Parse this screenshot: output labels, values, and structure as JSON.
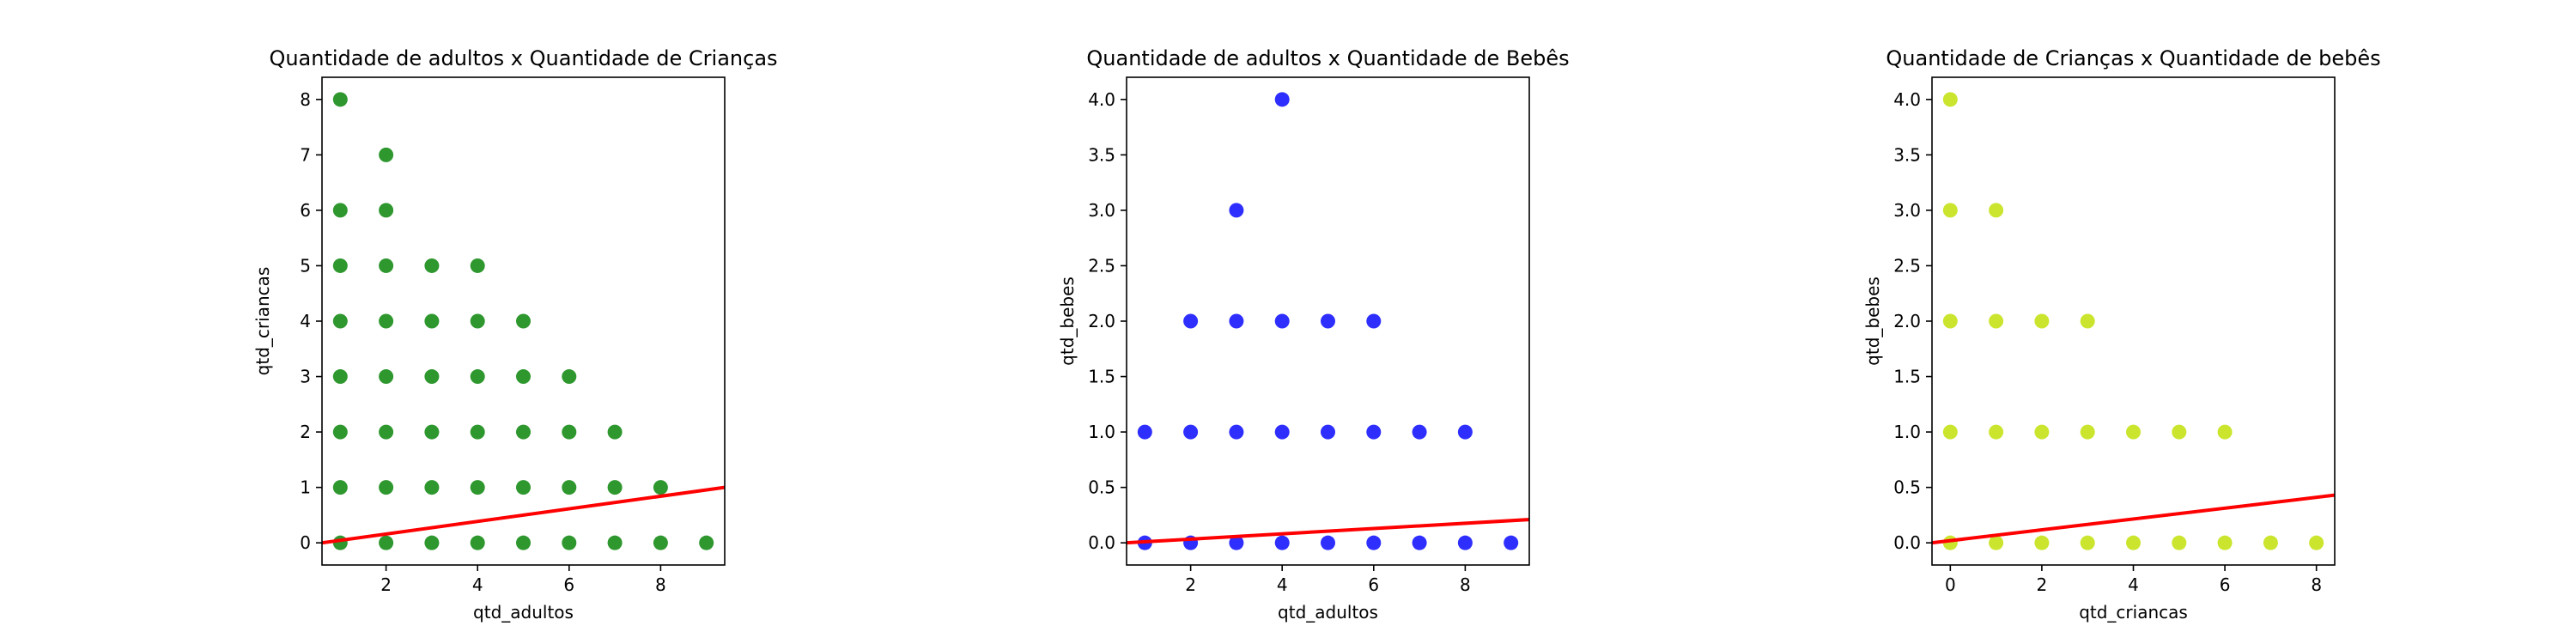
{
  "chart_data": [
    {
      "type": "scatter",
      "title": "Quantidade de adultos x Quantidade de Crianças",
      "xlabel": "qtd_adultos",
      "ylabel": "qtd_criancas",
      "xlim": [
        0.6,
        9.4
      ],
      "ylim": [
        -0.4,
        8.4
      ],
      "xticks": [
        2,
        4,
        6,
        8
      ],
      "yticks": [
        0,
        1,
        2,
        3,
        4,
        5,
        6,
        7,
        8
      ],
      "ytick_labels": [
        "0",
        "1",
        "2",
        "3",
        "4",
        "5",
        "6",
        "7",
        "8"
      ],
      "grid": false,
      "color": "#008000",
      "points": [
        [
          1,
          0
        ],
        [
          1,
          1
        ],
        [
          1,
          2
        ],
        [
          1,
          3
        ],
        [
          1,
          4
        ],
        [
          1,
          5
        ],
        [
          1,
          6
        ],
        [
          1,
          8
        ],
        [
          2,
          0
        ],
        [
          2,
          1
        ],
        [
          2,
          2
        ],
        [
          2,
          3
        ],
        [
          2,
          4
        ],
        [
          2,
          5
        ],
        [
          2,
          6
        ],
        [
          2,
          7
        ],
        [
          3,
          0
        ],
        [
          3,
          1
        ],
        [
          3,
          2
        ],
        [
          3,
          3
        ],
        [
          3,
          4
        ],
        [
          3,
          5
        ],
        [
          4,
          0
        ],
        [
          4,
          1
        ],
        [
          4,
          2
        ],
        [
          4,
          3
        ],
        [
          4,
          4
        ],
        [
          4,
          5
        ],
        [
          5,
          0
        ],
        [
          5,
          1
        ],
        [
          5,
          2
        ],
        [
          5,
          3
        ],
        [
          5,
          4
        ],
        [
          6,
          0
        ],
        [
          6,
          1
        ],
        [
          6,
          2
        ],
        [
          6,
          3
        ],
        [
          7,
          0
        ],
        [
          7,
          1
        ],
        [
          7,
          2
        ],
        [
          8,
          0
        ],
        [
          8,
          1
        ],
        [
          9,
          0
        ]
      ],
      "line": {
        "color": "#ff0000",
        "x": [
          0.6,
          9.4
        ],
        "y": [
          0.0,
          1.0
        ]
      }
    },
    {
      "type": "scatter",
      "title": "Quantidade de adultos x Quantidade de Bebês",
      "xlabel": "qtd_adultos",
      "ylabel": "qtd_bebes",
      "xlim": [
        0.6,
        9.4
      ],
      "ylim": [
        -0.2,
        4.2
      ],
      "xticks": [
        2,
        4,
        6,
        8
      ],
      "yticks": [
        0,
        0.5,
        1,
        1.5,
        2,
        2.5,
        3,
        3.5,
        4
      ],
      "ytick_labels": [
        "0.0",
        "0.5",
        "1.0",
        "1.5",
        "2.0",
        "2.5",
        "3.0",
        "3.5",
        "4.0"
      ],
      "grid": false,
      "color": "#0000ff",
      "points": [
        [
          1,
          0
        ],
        [
          1,
          1
        ],
        [
          2,
          0
        ],
        [
          2,
          1
        ],
        [
          2,
          2
        ],
        [
          3,
          0
        ],
        [
          3,
          1
        ],
        [
          3,
          2
        ],
        [
          3,
          3
        ],
        [
          4,
          0
        ],
        [
          4,
          1
        ],
        [
          4,
          2
        ],
        [
          4,
          4
        ],
        [
          5,
          0
        ],
        [
          5,
          1
        ],
        [
          5,
          2
        ],
        [
          6,
          0
        ],
        [
          6,
          1
        ],
        [
          6,
          2
        ],
        [
          7,
          0
        ],
        [
          7,
          1
        ],
        [
          8,
          0
        ],
        [
          8,
          1
        ],
        [
          9,
          0
        ]
      ],
      "line": {
        "color": "#ff0000",
        "x": [
          0.6,
          9.4
        ],
        "y": [
          0.0,
          0.21
        ]
      }
    },
    {
      "type": "scatter",
      "title": "Quantidade de Crianças x Quantidade de bebês",
      "xlabel": "qtd_criancas",
      "ylabel": "qtd_bebes",
      "xlim": [
        -0.4,
        8.4
      ],
      "ylim": [
        -0.2,
        4.2
      ],
      "xticks": [
        0,
        2,
        4,
        6,
        8
      ],
      "yticks": [
        0,
        0.5,
        1,
        1.5,
        2,
        2.5,
        3,
        3.5,
        4
      ],
      "ytick_labels": [
        "0.0",
        "0.5",
        "1.0",
        "1.5",
        "2.0",
        "2.5",
        "3.0",
        "3.5",
        "4.0"
      ],
      "grid": false,
      "color": "#bfdf00",
      "points": [
        [
          0,
          0
        ],
        [
          0,
          1
        ],
        [
          0,
          2
        ],
        [
          0,
          3
        ],
        [
          0,
          4
        ],
        [
          1,
          0
        ],
        [
          1,
          1
        ],
        [
          1,
          2
        ],
        [
          1,
          3
        ],
        [
          2,
          0
        ],
        [
          2,
          1
        ],
        [
          2,
          2
        ],
        [
          3,
          0
        ],
        [
          3,
          1
        ],
        [
          3,
          2
        ],
        [
          4,
          0
        ],
        [
          4,
          1
        ],
        [
          5,
          0
        ],
        [
          5,
          1
        ],
        [
          6,
          0
        ],
        [
          6,
          1
        ],
        [
          7,
          0
        ],
        [
          8,
          0
        ]
      ],
      "line": {
        "color": "#ff0000",
        "x": [
          -0.4,
          8.4
        ],
        "y": [
          0.0,
          0.43
        ]
      }
    }
  ]
}
